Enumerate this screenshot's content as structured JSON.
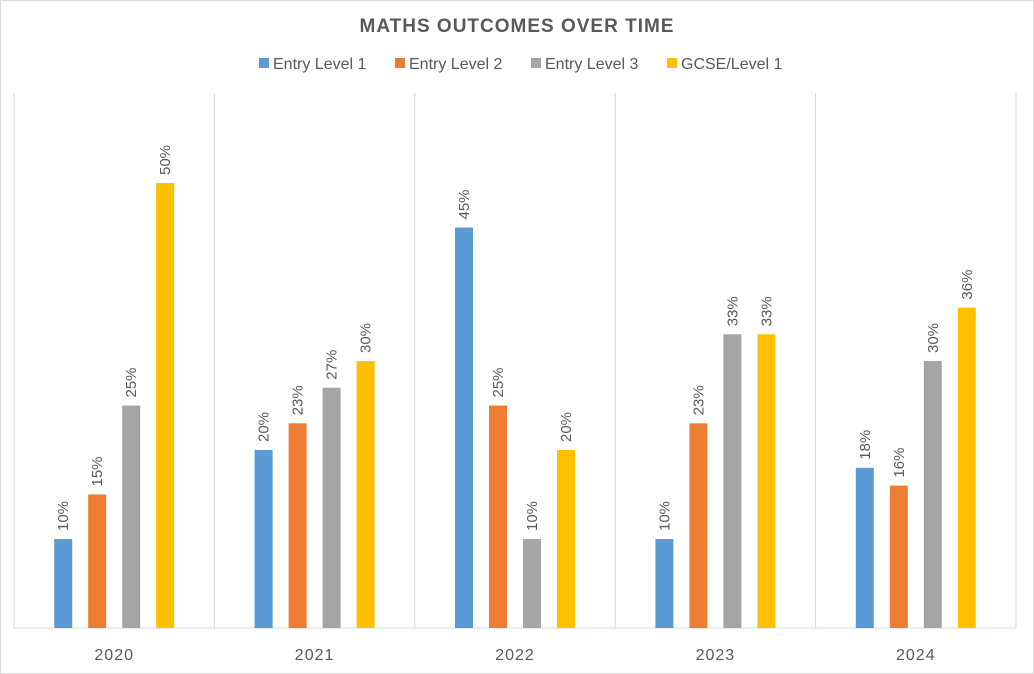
{
  "chart_data": {
    "type": "bar",
    "title": "MATHS OUTCOMES OVER TIME",
    "categories": [
      "2020",
      "2021",
      "2022",
      "2023",
      "2024"
    ],
    "series": [
      {
        "name": "Entry Level 1",
        "color": "#5b9bd5",
        "values": [
          10,
          20,
          45,
          10,
          18
        ],
        "labels": [
          "10%",
          "20%",
          "45%",
          "10%",
          "18%"
        ]
      },
      {
        "name": "Entry Level 2",
        "color": "#ed7d31",
        "values": [
          15,
          23,
          25,
          23,
          16
        ],
        "labels": [
          "15%",
          "23%",
          "25%",
          "23%",
          "16%"
        ]
      },
      {
        "name": "Entry Level 3",
        "color": "#a5a5a5",
        "values": [
          25,
          27,
          10,
          33,
          30
        ],
        "labels": [
          "25%",
          "27%",
          "10%",
          "33%",
          "30%"
        ]
      },
      {
        "name": "GCSE/Level 1",
        "color": "#ffc000",
        "values": [
          50,
          30,
          20,
          33,
          36
        ],
        "labels": [
          "50%",
          "30%",
          "20%",
          "33%",
          "36%"
        ]
      }
    ],
    "ylim": [
      0,
      60
    ],
    "y_axis_visible": false,
    "grid": "vertical category separators",
    "legend_position": "top"
  }
}
